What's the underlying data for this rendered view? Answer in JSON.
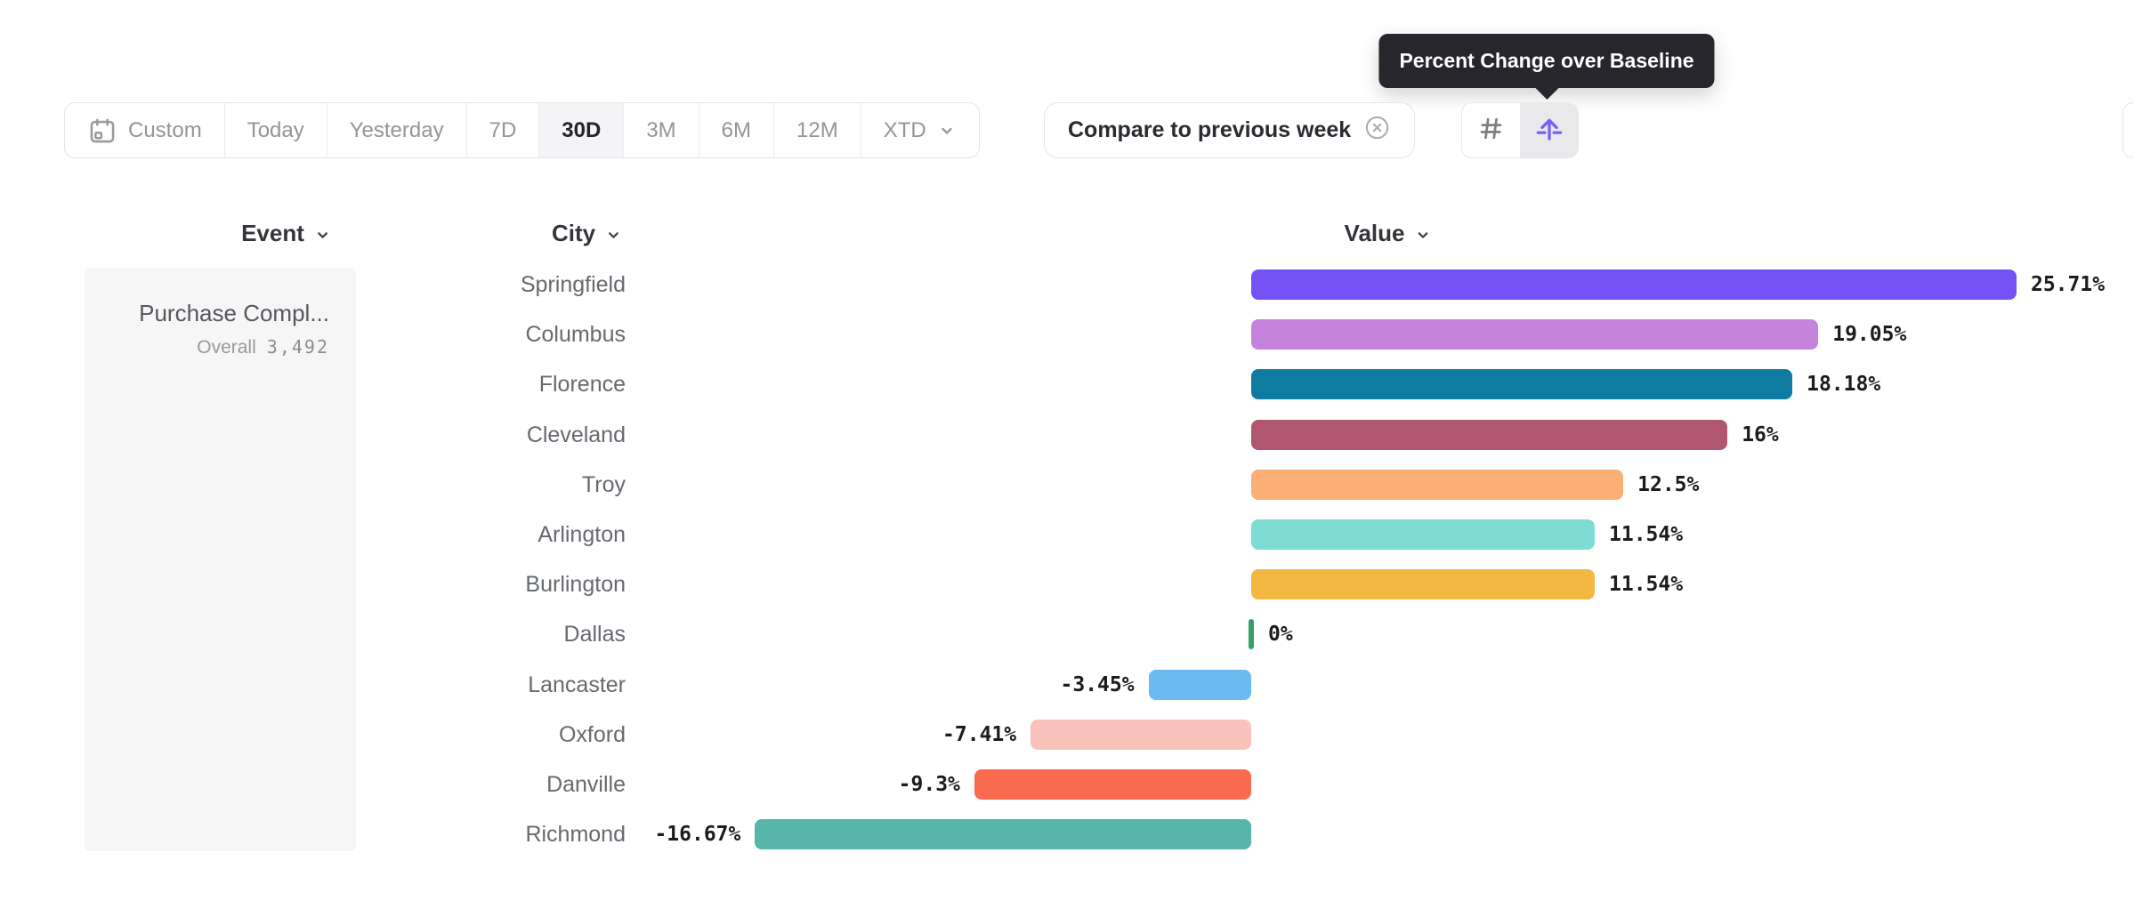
{
  "tooltip": {
    "text": "Percent Change over Baseline"
  },
  "toolbar": {
    "date_ranges": [
      {
        "label": "Custom",
        "active": false,
        "icon": "calendar-icon"
      },
      {
        "label": "Today",
        "active": false
      },
      {
        "label": "Yesterday",
        "active": false
      },
      {
        "label": "7D",
        "active": false
      },
      {
        "label": "30D",
        "active": true
      },
      {
        "label": "3M",
        "active": false
      },
      {
        "label": "6M",
        "active": false
      },
      {
        "label": "12M",
        "active": false
      },
      {
        "label": "XTD",
        "active": false,
        "has_dropdown": true
      }
    ],
    "compare_label": "Compare to previous week",
    "view_toggle": {
      "options": [
        {
          "name": "number-view",
          "icon": "hash-icon",
          "selected": false
        },
        {
          "name": "percent-change-view",
          "icon": "baseline-arrow-icon",
          "selected": true
        }
      ]
    }
  },
  "columns": {
    "event": "Event",
    "city": "City",
    "value": "Value"
  },
  "event_panel": {
    "event_name": "Purchase Compl...",
    "overall_label": "Overall",
    "overall_value": "3,492"
  },
  "chart_data": {
    "type": "bar",
    "orientation": "horizontal",
    "value_format": "percent_change_over_baseline",
    "baseline": 0,
    "grid": false,
    "legend": false,
    "xlim": [
      -16.67,
      25.71
    ],
    "categories": [
      "Springfield",
      "Columbus",
      "Florence",
      "Cleveland",
      "Troy",
      "Arlington",
      "Burlington",
      "Dallas",
      "Lancaster",
      "Oxford",
      "Danville",
      "Richmond"
    ],
    "values": [
      25.71,
      19.05,
      18.18,
      16,
      12.5,
      11.54,
      11.54,
      0,
      -3.45,
      -7.41,
      -9.3,
      -16.67
    ],
    "value_labels": [
      "25.71%",
      "19.05%",
      "18.18%",
      "16%",
      "12.5%",
      "11.54%",
      "11.54%",
      "0%",
      "-3.45%",
      "-7.41%",
      "-9.3%",
      "-16.67%"
    ],
    "bar_colors": [
      "#7452f5",
      "#c683dd",
      "#0f7ba0",
      "#b05670",
      "#fbae75",
      "#7fdcd2",
      "#f2b841",
      "#35a06a",
      "#6cbaf2",
      "#f9c3bc",
      "#f96a4f",
      "#57b5a9"
    ]
  },
  "colors": {
    "accent_purple": "#7a5ef8",
    "tooltip_bg": "#26262c",
    "zero_tick_green": "#35a06a",
    "border": "#e5e5e8"
  }
}
